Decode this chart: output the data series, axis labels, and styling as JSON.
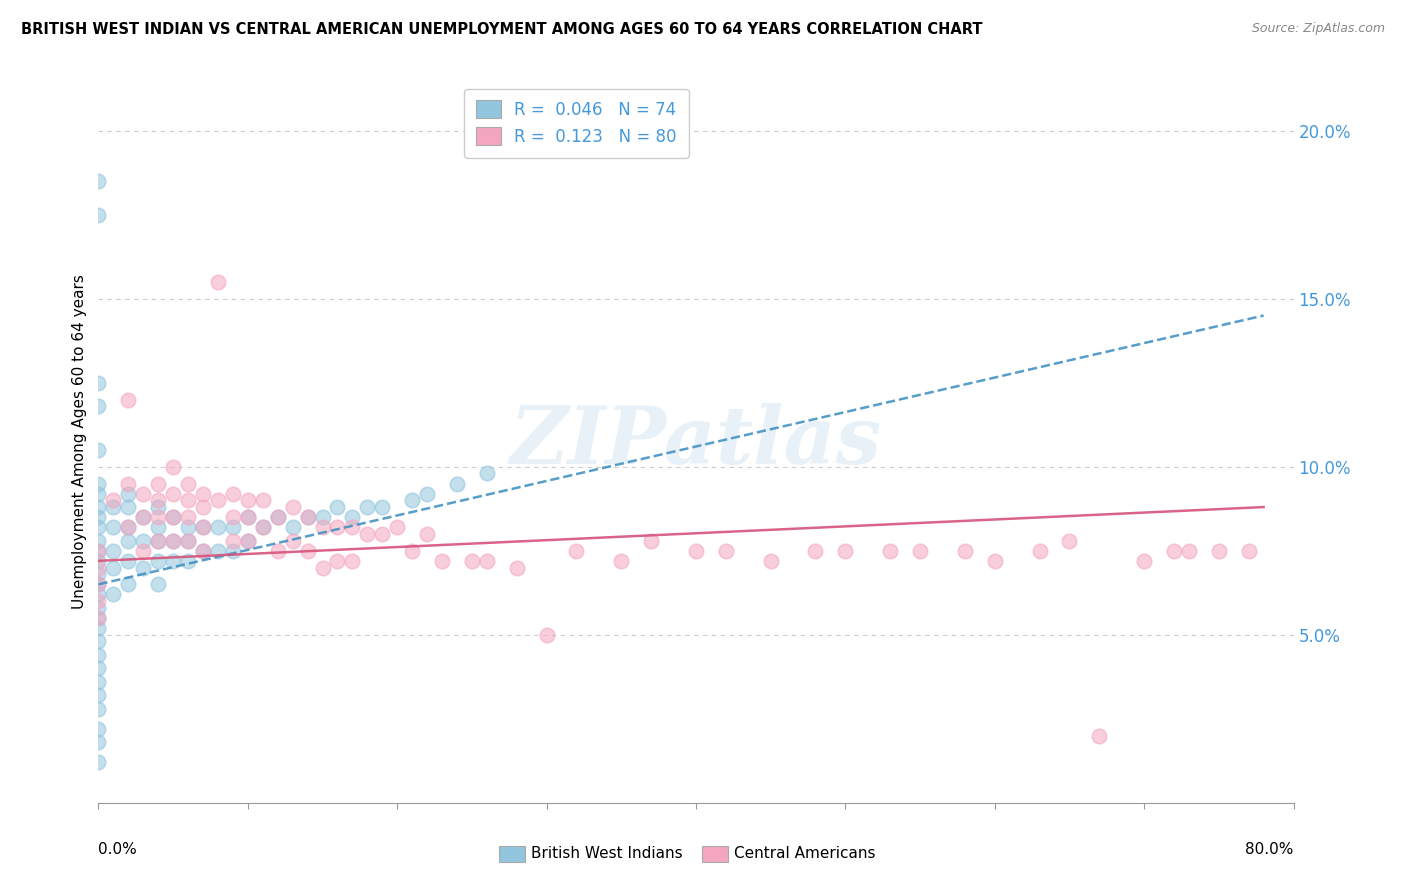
{
  "title": "BRITISH WEST INDIAN VS CENTRAL AMERICAN UNEMPLOYMENT AMONG AGES 60 TO 64 YEARS CORRELATION CHART",
  "source": "Source: ZipAtlas.com",
  "ylabel": "Unemployment Among Ages 60 to 64 years",
  "xlim": [
    0.0,
    0.8
  ],
  "ylim": [
    0.0,
    0.215
  ],
  "yticks": [
    0.05,
    0.1,
    0.15,
    0.2
  ],
  "ytick_labels": [
    "5.0%",
    "10.0%",
    "15.0%",
    "20.0%"
  ],
  "legend_r1": "R =  0.046",
  "legend_n1": "N = 74",
  "legend_r2": "R =  0.123",
  "legend_n2": "N = 80",
  "color_blue": "#92c5de",
  "color_pink": "#f4a6c0",
  "color_blue_line": "#4393c3",
  "color_pink_line": "#d6537a",
  "watermark": "ZIPatlas",
  "bwi_x": [
    0.0,
    0.0,
    0.0,
    0.0,
    0.0,
    0.0,
    0.0,
    0.0,
    0.0,
    0.0,
    0.0,
    0.0,
    0.0,
    0.0,
    0.0,
    0.0,
    0.0,
    0.0,
    0.0,
    0.0,
    0.0,
    0.0,
    0.0,
    0.0,
    0.0,
    0.0,
    0.0,
    0.0,
    0.01,
    0.01,
    0.01,
    0.01,
    0.01,
    0.02,
    0.02,
    0.02,
    0.02,
    0.02,
    0.02,
    0.03,
    0.03,
    0.03,
    0.04,
    0.04,
    0.04,
    0.04,
    0.04,
    0.05,
    0.05,
    0.05,
    0.06,
    0.06,
    0.06,
    0.07,
    0.07,
    0.08,
    0.08,
    0.09,
    0.09,
    0.1,
    0.1,
    0.11,
    0.12,
    0.13,
    0.14,
    0.15,
    0.16,
    0.17,
    0.18,
    0.19,
    0.21,
    0.22,
    0.24,
    0.26
  ],
  "bwi_y": [
    0.185,
    0.175,
    0.125,
    0.118,
    0.105,
    0.095,
    0.092,
    0.088,
    0.085,
    0.082,
    0.078,
    0.075,
    0.072,
    0.068,
    0.065,
    0.062,
    0.058,
    0.055,
    0.052,
    0.048,
    0.044,
    0.04,
    0.036,
    0.032,
    0.028,
    0.022,
    0.018,
    0.012,
    0.088,
    0.082,
    0.075,
    0.07,
    0.062,
    0.092,
    0.088,
    0.082,
    0.078,
    0.072,
    0.065,
    0.085,
    0.078,
    0.07,
    0.088,
    0.082,
    0.078,
    0.072,
    0.065,
    0.085,
    0.078,
    0.072,
    0.082,
    0.078,
    0.072,
    0.082,
    0.075,
    0.082,
    0.075,
    0.082,
    0.075,
    0.085,
    0.078,
    0.082,
    0.085,
    0.082,
    0.085,
    0.085,
    0.088,
    0.085,
    0.088,
    0.088,
    0.09,
    0.092,
    0.095,
    0.098
  ],
  "ca_x": [
    0.0,
    0.0,
    0.0,
    0.0,
    0.0,
    0.01,
    0.02,
    0.02,
    0.02,
    0.03,
    0.03,
    0.03,
    0.04,
    0.04,
    0.04,
    0.04,
    0.05,
    0.05,
    0.05,
    0.05,
    0.06,
    0.06,
    0.06,
    0.06,
    0.07,
    0.07,
    0.07,
    0.07,
    0.08,
    0.08,
    0.09,
    0.09,
    0.09,
    0.1,
    0.1,
    0.1,
    0.11,
    0.11,
    0.12,
    0.12,
    0.13,
    0.13,
    0.14,
    0.14,
    0.15,
    0.15,
    0.16,
    0.16,
    0.17,
    0.17,
    0.18,
    0.19,
    0.2,
    0.21,
    0.22,
    0.23,
    0.25,
    0.26,
    0.28,
    0.3,
    0.32,
    0.35,
    0.37,
    0.4,
    0.42,
    0.45,
    0.48,
    0.5,
    0.53,
    0.55,
    0.58,
    0.6,
    0.63,
    0.65,
    0.67,
    0.7,
    0.72,
    0.73,
    0.75,
    0.77
  ],
  "ca_y": [
    0.075,
    0.07,
    0.065,
    0.06,
    0.055,
    0.09,
    0.12,
    0.095,
    0.082,
    0.092,
    0.085,
    0.075,
    0.095,
    0.09,
    0.085,
    0.078,
    0.1,
    0.092,
    0.085,
    0.078,
    0.095,
    0.09,
    0.085,
    0.078,
    0.092,
    0.088,
    0.082,
    0.075,
    0.155,
    0.09,
    0.092,
    0.085,
    0.078,
    0.09,
    0.085,
    0.078,
    0.09,
    0.082,
    0.085,
    0.075,
    0.088,
    0.078,
    0.085,
    0.075,
    0.082,
    0.07,
    0.082,
    0.072,
    0.082,
    0.072,
    0.08,
    0.08,
    0.082,
    0.075,
    0.08,
    0.072,
    0.072,
    0.072,
    0.07,
    0.05,
    0.075,
    0.072,
    0.078,
    0.075,
    0.075,
    0.072,
    0.075,
    0.075,
    0.075,
    0.075,
    0.075,
    0.072,
    0.075,
    0.078,
    0.02,
    0.072,
    0.075,
    0.075,
    0.075,
    0.075
  ],
  "bwi_trend_x0": 0.0,
  "bwi_trend_x1": 0.78,
  "bwi_trend_y0": 0.065,
  "bwi_trend_y1": 0.145,
  "ca_trend_x0": 0.0,
  "ca_trend_x1": 0.78,
  "ca_trend_y0": 0.072,
  "ca_trend_y1": 0.088
}
